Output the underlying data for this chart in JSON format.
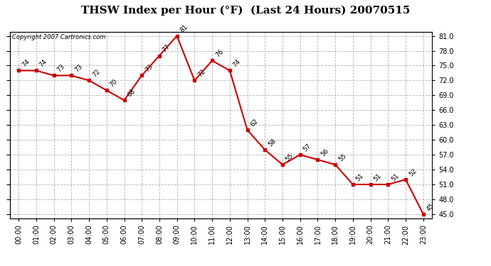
{
  "title": "THSW Index per Hour (°F)  (Last 24 Hours) 20070515",
  "copyright_text": "Copyright 2007 Cartronics.com",
  "hours": [
    "00:00",
    "01:00",
    "02:00",
    "03:00",
    "04:00",
    "05:00",
    "06:00",
    "07:00",
    "08:00",
    "09:00",
    "10:00",
    "11:00",
    "12:00",
    "13:00",
    "14:00",
    "15:00",
    "16:00",
    "17:00",
    "18:00",
    "19:00",
    "20:00",
    "21:00",
    "22:00",
    "23:00"
  ],
  "values": [
    74,
    74,
    73,
    73,
    72,
    70,
    68,
    73,
    77,
    81,
    72,
    76,
    74,
    62,
    58,
    55,
    57,
    56,
    55,
    51,
    51,
    51,
    52,
    45
  ],
  "line_color": "#cc0000",
  "marker_color": "#cc0000",
  "bg_color": "#ffffff",
  "grid_color": "#aaaaaa",
  "ylim_min": 45.0,
  "ylim_max": 81.0,
  "ytick_step": 3.0,
  "title_fontsize": 11,
  "annotation_fontsize": 6.5,
  "tick_fontsize": 7.0,
  "copyright_fontsize": 6.0
}
